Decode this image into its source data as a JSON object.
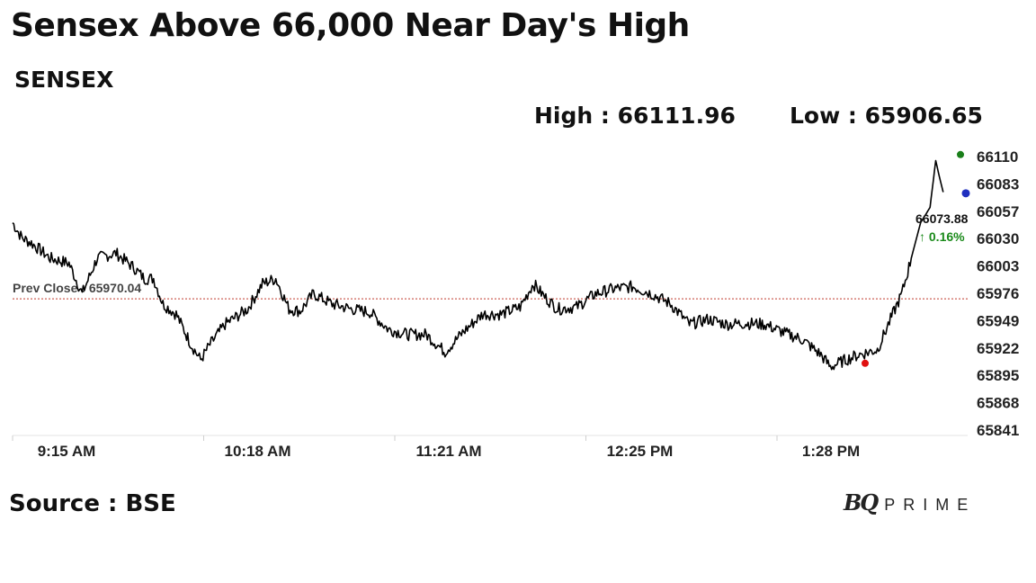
{
  "header": {
    "title": "Sensex Above 66,000 Near Day's High",
    "subtitle": "SENSEX",
    "high_text": "High : 66111.96",
    "low_text": "Low : 65906.65"
  },
  "footer": {
    "source": "Source : BSE",
    "logo_mark": "BQ",
    "logo_word": "PRIME"
  },
  "chart_data": {
    "type": "line",
    "series_name": "SENSEX",
    "x_tick_labels": [
      "9:15 AM",
      "10:18 AM",
      "11:21 AM",
      "12:25 PM",
      "1:28 PM"
    ],
    "y_tick_labels": [
      "66110",
      "66083",
      "66057",
      "66030",
      "66003",
      "65976",
      "65949",
      "65922",
      "65895",
      "65868",
      "65841"
    ],
    "ylim": [
      65841,
      66110
    ],
    "high": 66111.96,
    "low": 65906.65,
    "prev_close": 65970.04,
    "prev_close_label": "Prev Close : 65970.04",
    "last_value": 66073.88,
    "last_value_label": "66073.88",
    "change_label": "↑ 0.16%",
    "colors": {
      "line": "#000000",
      "high_marker": "#1a7f1a",
      "low_marker": "#e01010",
      "last_marker": "#1f2fbf",
      "prev_close_line": "#c0392b",
      "change": "#1a8a1a"
    },
    "approx_points": [
      [
        9.25,
        66045
      ],
      [
        9.3,
        66030
      ],
      [
        9.35,
        66025
      ],
      [
        9.45,
        66010
      ],
      [
        9.55,
        66005
      ],
      [
        9.62,
        65975
      ],
      [
        9.7,
        66010
      ],
      [
        9.8,
        66015
      ],
      [
        9.9,
        66000
      ],
      [
        9.95,
        65990
      ],
      [
        10.0,
        65990
      ],
      [
        10.05,
        65965
      ],
      [
        10.12,
        65955
      ],
      [
        10.2,
        65925
      ],
      [
        10.25,
        65910
      ],
      [
        10.3,
        65925
      ],
      [
        10.38,
        65945
      ],
      [
        10.5,
        65960
      ],
      [
        10.58,
        65985
      ],
      [
        10.65,
        65990
      ],
      [
        10.72,
        65960
      ],
      [
        10.78,
        65958
      ],
      [
        10.85,
        65975
      ],
      [
        10.95,
        65965
      ],
      [
        11.05,
        65960
      ],
      [
        11.15,
        65957
      ],
      [
        11.25,
        65940
      ],
      [
        11.35,
        65935
      ],
      [
        11.45,
        65935
      ],
      [
        11.55,
        65918
      ],
      [
        11.65,
        65938
      ],
      [
        11.75,
        65955
      ],
      [
        11.85,
        65955
      ],
      [
        11.95,
        65962
      ],
      [
        12.02,
        65985
      ],
      [
        12.08,
        65972
      ],
      [
        12.15,
        65960
      ],
      [
        12.25,
        65962
      ],
      [
        12.35,
        65975
      ],
      [
        12.45,
        65980
      ],
      [
        12.55,
        65982
      ],
      [
        12.65,
        65975
      ],
      [
        12.75,
        65965
      ],
      [
        12.85,
        65945
      ],
      [
        12.95,
        65950
      ],
      [
        13.05,
        65945
      ],
      [
        13.15,
        65946
      ],
      [
        13.25,
        65945
      ],
      [
        13.35,
        65937
      ],
      [
        13.45,
        65930
      ],
      [
        13.55,
        65915
      ],
      [
        13.6,
        65903
      ],
      [
        13.68,
        65910
      ],
      [
        13.75,
        65915
      ],
      [
        13.85,
        65920
      ],
      [
        13.92,
        65950
      ],
      [
        13.98,
        65975
      ],
      [
        14.03,
        66010
      ],
      [
        14.08,
        66045
      ],
      [
        14.13,
        66060
      ],
      [
        14.16,
        66106
      ],
      [
        14.18,
        66090
      ],
      [
        14.2,
        66075
      ]
    ]
  }
}
